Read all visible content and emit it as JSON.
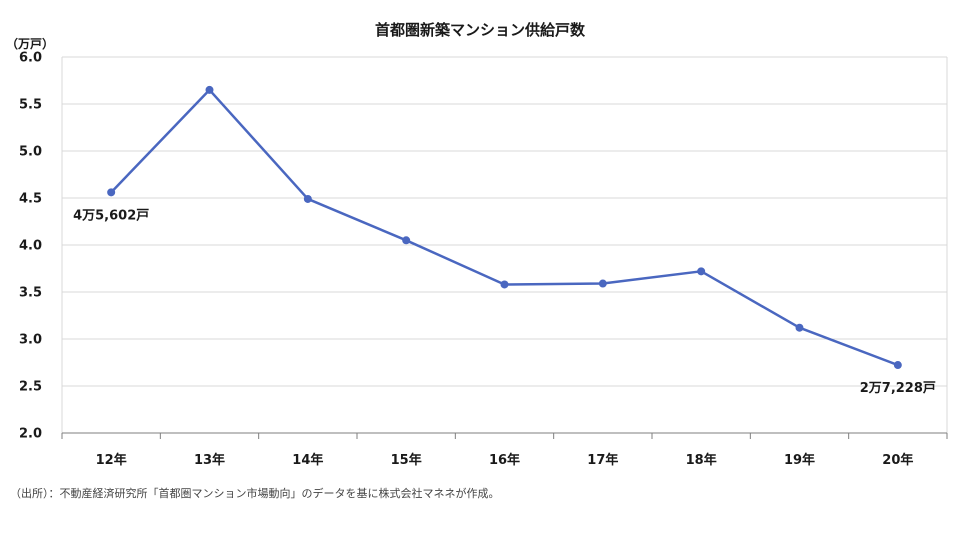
{
  "chart_data": {
    "type": "line",
    "title": "首都圏新築マンション供給戸数",
    "ylabel": "（万戸）",
    "xlabel": "",
    "categories": [
      "12年",
      "13年",
      "14年",
      "15年",
      "16年",
      "17年",
      "18年",
      "19年",
      "20年"
    ],
    "series": [
      {
        "values": [
          4.5602,
          5.65,
          4.49,
          4.05,
          3.58,
          3.59,
          3.72,
          3.12,
          2.7228
        ],
        "color": "#4a67c0"
      }
    ],
    "ylim": [
      2.0,
      6.0
    ],
    "yticks": [
      "2.0",
      "2.5",
      "3.0",
      "3.5",
      "4.0",
      "4.5",
      "5.0",
      "5.5",
      "6.0"
    ],
    "grid": true,
    "annotations": [
      {
        "index": 0,
        "text": "4万5,602戸"
      },
      {
        "index": 8,
        "text": "2万7,228戸"
      }
    ]
  },
  "source": "（出所）：不動産経済研究所「首都圏マンション市場動向」のデータを基に株式会社マネネが作成。"
}
